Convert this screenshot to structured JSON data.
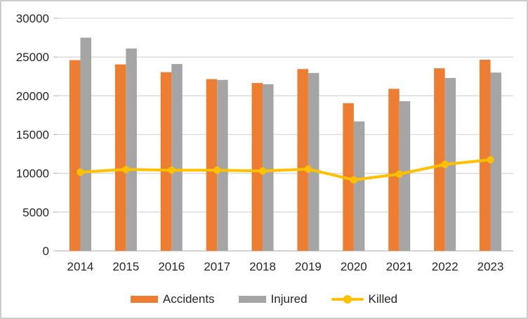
{
  "chart_data": {
    "type": "combo",
    "title": "",
    "xlabel": "",
    "ylabel": "",
    "categories": [
      "2014",
      "2015",
      "2016",
      "2017",
      "2018",
      "2019",
      "2020",
      "2021",
      "2022",
      "2023"
    ],
    "series": [
      {
        "name": "Accidents",
        "type": "bar",
        "color": "#ED7D31",
        "values": [
          24600,
          24050,
          23050,
          22150,
          21650,
          23450,
          19050,
          20900,
          23550,
          24650
        ]
      },
      {
        "name": "Injured",
        "type": "bar",
        "color": "#A5A5A5",
        "values": [
          27500,
          26100,
          24100,
          22050,
          21500,
          22950,
          16700,
          19300,
          22300,
          23000
        ]
      },
      {
        "name": "Killed",
        "type": "line",
        "color": "#FFC000",
        "values": [
          10150,
          10500,
          10400,
          10400,
          10300,
          10550,
          9150,
          9900,
          11150,
          11750
        ]
      }
    ],
    "ylim": [
      0,
      30000
    ],
    "y_ticks": [
      0,
      5000,
      10000,
      15000,
      20000,
      25000,
      30000
    ],
    "y_tick_labels": [
      "0",
      "5000",
      "10000",
      "15000",
      "20000",
      "25000",
      "30000"
    ],
    "grid": true,
    "legend_position": "bottom",
    "colors": {
      "gridline": "#D9D9D9",
      "axis_line": "#D3D3D3",
      "tick_mark": "#BFBFBF",
      "text": "#262626",
      "frame_border": "#CDCDCD",
      "background": "#FFFFFF"
    }
  }
}
